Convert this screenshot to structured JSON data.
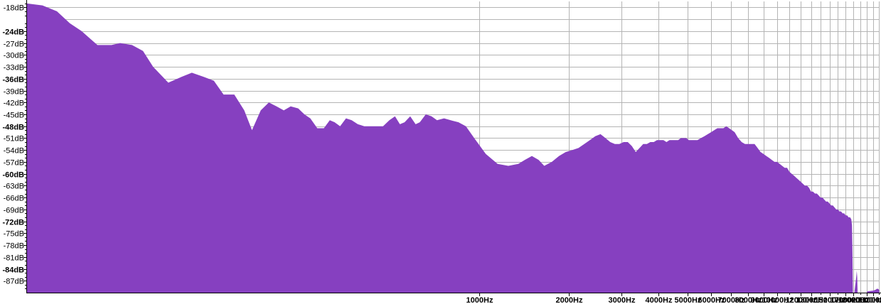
{
  "chart_data": {
    "type": "area",
    "title": "",
    "xlabel": "",
    "ylabel": "",
    "x_scale": "log",
    "xlim": [
      30,
      22100
    ],
    "ylim": [
      -90,
      -16.5
    ],
    "grid": true,
    "legend": "none",
    "colors": {
      "fill": "#8640c0",
      "background": "#ffffff",
      "grid": "#b4b4b4",
      "axis": "#000000"
    },
    "x_ticks": [
      {
        "value": 1000,
        "label": "1000Hz"
      },
      {
        "value": 2000,
        "label": "2000Hz"
      },
      {
        "value": 3000,
        "label": "3000Hz"
      },
      {
        "value": 4000,
        "label": "4000Hz"
      },
      {
        "value": 5000,
        "label": "5000Hz"
      },
      {
        "value": 6000,
        "label": "6000Hz"
      },
      {
        "value": 7000,
        "label": "7000Hz"
      },
      {
        "value": 8000,
        "label": "8000Hz"
      },
      {
        "value": 9000,
        "label": "9000Hz"
      },
      {
        "value": 10000,
        "label": "10000Hz"
      },
      {
        "value": 12000,
        "label": "12000Hz"
      },
      {
        "value": 13000,
        "label": "13000Hz"
      },
      {
        "value": 15000,
        "label": "15000Hz"
      },
      {
        "value": 17000,
        "label": "17000Hz"
      },
      {
        "value": 18000,
        "label": "18000Hz"
      },
      {
        "value": 20000,
        "label": "20000Hz"
      },
      {
        "value": 21000,
        "label": "21000Hz"
      }
    ],
    "x_minor_grid": [
      11000,
      14000,
      16000,
      19000,
      22000
    ],
    "y_ticks": [
      {
        "value": -18,
        "label": "-18dB",
        "bold": false
      },
      {
        "value": -24,
        "label": "-24dB",
        "bold": true
      },
      {
        "value": -27,
        "label": "-27dB",
        "bold": false
      },
      {
        "value": -30,
        "label": "-30dB",
        "bold": false
      },
      {
        "value": -33,
        "label": "-33dB",
        "bold": false
      },
      {
        "value": -36,
        "label": "-36dB",
        "bold": true
      },
      {
        "value": -39,
        "label": "-39dB",
        "bold": false
      },
      {
        "value": -42,
        "label": "-42dB",
        "bold": false
      },
      {
        "value": -45,
        "label": "-45dB",
        "bold": false
      },
      {
        "value": -48,
        "label": "-48dB",
        "bold": true
      },
      {
        "value": -51,
        "label": "-51dB",
        "bold": false
      },
      {
        "value": -54,
        "label": "-54dB",
        "bold": false
      },
      {
        "value": -57,
        "label": "-57dB",
        "bold": false
      },
      {
        "value": -60,
        "label": "-60dB",
        "bold": true
      },
      {
        "value": -63,
        "label": "-63dB",
        "bold": false
      },
      {
        "value": -66,
        "label": "-66dB",
        "bold": false
      },
      {
        "value": -69,
        "label": "-69dB",
        "bold": false
      },
      {
        "value": -72,
        "label": "-72dB",
        "bold": true
      },
      {
        "value": -75,
        "label": "-75dB",
        "bold": false
      },
      {
        "value": -78,
        "label": "-78dB",
        "bold": false
      },
      {
        "value": -81,
        "label": "-81dB",
        "bold": false
      },
      {
        "value": -84,
        "label": "-84dB",
        "bold": true
      },
      {
        "value": -87,
        "label": "-87dB",
        "bold": false
      }
    ],
    "series": [
      {
        "points": [
          [
            30,
            -17.0
          ],
          [
            34,
            -17.5
          ],
          [
            38,
            -19.0
          ],
          [
            42,
            -22.0
          ],
          [
            46,
            -24.0
          ],
          [
            52,
            -27.5
          ],
          [
            58,
            -27.5
          ],
          [
            62,
            -27.0
          ],
          [
            68,
            -27.5
          ],
          [
            74,
            -29.0
          ],
          [
            80,
            -33.0
          ],
          [
            90,
            -37.0
          ],
          [
            100,
            -35.5
          ],
          [
            108,
            -34.5
          ],
          [
            118,
            -35.5
          ],
          [
            128,
            -36.5
          ],
          [
            138,
            -40.0
          ],
          [
            150,
            -40.0
          ],
          [
            162,
            -44.0
          ],
          [
            172,
            -49.0
          ],
          [
            184,
            -44.0
          ],
          [
            196,
            -42.0
          ],
          [
            208,
            -43.0
          ],
          [
            220,
            -44.0
          ],
          [
            232,
            -43.0
          ],
          [
            246,
            -43.5
          ],
          [
            258,
            -45.0
          ],
          [
            270,
            -46.0
          ],
          [
            285,
            -48.5
          ],
          [
            300,
            -48.5
          ],
          [
            314,
            -46.5
          ],
          [
            326,
            -47.0
          ],
          [
            340,
            -48.0
          ],
          [
            356,
            -46.0
          ],
          [
            372,
            -46.5
          ],
          [
            390,
            -47.5
          ],
          [
            410,
            -48.0
          ],
          [
            430,
            -48.0
          ],
          [
            452,
            -48.0
          ],
          [
            474,
            -48.0
          ],
          [
            498,
            -46.5
          ],
          [
            520,
            -45.5
          ],
          [
            540,
            -47.5
          ],
          [
            560,
            -47.0
          ],
          [
            585,
            -45.5
          ],
          [
            610,
            -47.5
          ],
          [
            630,
            -47.0
          ],
          [
            660,
            -45.0
          ],
          [
            690,
            -45.5
          ],
          [
            720,
            -46.5
          ],
          [
            760,
            -46.0
          ],
          [
            800,
            -46.5
          ],
          [
            850,
            -47.0
          ],
          [
            900,
            -48.0
          ],
          [
            960,
            -51.0
          ],
          [
            1050,
            -55.0
          ],
          [
            1150,
            -57.5
          ],
          [
            1250,
            -58.0
          ],
          [
            1350,
            -57.5
          ],
          [
            1420,
            -56.5
          ],
          [
            1500,
            -55.5
          ],
          [
            1580,
            -56.5
          ],
          [
            1650,
            -58.0
          ],
          [
            1750,
            -57.0
          ],
          [
            1850,
            -55.5
          ],
          [
            1950,
            -54.5
          ],
          [
            2050,
            -54.0
          ],
          [
            2150,
            -53.5
          ],
          [
            2250,
            -52.5
          ],
          [
            2350,
            -51.5
          ],
          [
            2450,
            -50.5
          ],
          [
            2550,
            -50.0
          ],
          [
            2650,
            -51.0
          ],
          [
            2750,
            -52.0
          ],
          [
            2850,
            -52.5
          ],
          [
            2950,
            -52.5
          ],
          [
            3050,
            -52.0
          ],
          [
            3150,
            -52.0
          ],
          [
            3250,
            -53.0
          ],
          [
            3350,
            -54.5
          ],
          [
            3450,
            -53.5
          ],
          [
            3550,
            -52.5
          ],
          [
            3650,
            -52.5
          ],
          [
            3750,
            -52.0
          ],
          [
            3850,
            -52.0
          ],
          [
            3950,
            -51.5
          ],
          [
            4050,
            -51.5
          ],
          [
            4150,
            -51.5
          ],
          [
            4250,
            -52.0
          ],
          [
            4350,
            -51.5
          ],
          [
            4450,
            -51.5
          ],
          [
            4550,
            -51.5
          ],
          [
            4650,
            -51.5
          ],
          [
            4750,
            -51.0
          ],
          [
            4850,
            -51.0
          ],
          [
            4950,
            -51.0
          ],
          [
            5050,
            -51.5
          ],
          [
            5150,
            -51.5
          ],
          [
            5250,
            -51.5
          ],
          [
            5400,
            -51.5
          ],
          [
            5550,
            -51.0
          ],
          [
            5700,
            -50.5
          ],
          [
            5850,
            -50.0
          ],
          [
            6000,
            -49.5
          ],
          [
            6150,
            -49.0
          ],
          [
            6300,
            -48.5
          ],
          [
            6450,
            -48.5
          ],
          [
            6600,
            -48.5
          ],
          [
            6750,
            -48.0
          ],
          [
            6900,
            -48.5
          ],
          [
            7050,
            -49.0
          ],
          [
            7200,
            -49.5
          ],
          [
            7400,
            -51.0
          ],
          [
            7600,
            -52.0
          ],
          [
            7800,
            -52.5
          ],
          [
            8000,
            -52.5
          ],
          [
            8200,
            -52.5
          ],
          [
            8400,
            -52.5
          ],
          [
            8600,
            -53.5
          ],
          [
            8800,
            -54.5
          ],
          [
            9000,
            -55.0
          ],
          [
            9200,
            -55.5
          ],
          [
            9400,
            -56.0
          ],
          [
            9600,
            -56.5
          ],
          [
            9800,
            -57.0
          ],
          [
            10000,
            -57.0
          ],
          [
            10200,
            -57.5
          ],
          [
            10400,
            -58.0
          ],
          [
            10600,
            -58.5
          ],
          [
            10800,
            -58.5
          ],
          [
            11000,
            -59.5
          ],
          [
            11200,
            -60.0
          ],
          [
            11400,
            -60.5
          ],
          [
            11600,
            -61.0
          ],
          [
            11800,
            -61.5
          ],
          [
            12000,
            -62.0
          ],
          [
            12200,
            -62.5
          ],
          [
            12400,
            -63.0
          ],
          [
            12600,
            -63.0
          ],
          [
            12800,
            -63.5
          ],
          [
            13000,
            -64.5
          ],
          [
            13200,
            -64.5
          ],
          [
            13400,
            -65.0
          ],
          [
            13600,
            -65.0
          ],
          [
            13800,
            -65.5
          ],
          [
            14000,
            -66.0
          ],
          [
            14200,
            -66.0
          ],
          [
            14400,
            -66.5
          ],
          [
            14600,
            -67.0
          ],
          [
            14800,
            -67.0
          ],
          [
            15000,
            -67.5
          ],
          [
            15200,
            -68.0
          ],
          [
            15400,
            -68.0
          ],
          [
            15600,
            -68.5
          ],
          [
            15800,
            -69.0
          ],
          [
            16000,
            -69.0
          ],
          [
            16200,
            -69.5
          ],
          [
            16400,
            -69.5
          ],
          [
            16600,
            -70.0
          ],
          [
            16800,
            -70.0
          ],
          [
            17000,
            -70.5
          ],
          [
            17200,
            -70.5
          ],
          [
            17400,
            -71.0
          ],
          [
            17600,
            -71.0
          ],
          [
            17750,
            -71.5
          ],
          [
            17850,
            -73.0
          ],
          [
            17920,
            -80.0
          ],
          [
            17980,
            -90.0
          ],
          [
            18180,
            -90.0
          ],
          [
            18250,
            -89.0
          ],
          [
            18350,
            -87.5
          ],
          [
            18450,
            -86.0
          ],
          [
            18520,
            -84.5
          ],
          [
            18580,
            -86.0
          ],
          [
            18650,
            -90.0
          ],
          [
            20000,
            -90.0
          ],
          [
            20100,
            -89.7
          ],
          [
            20500,
            -89.6
          ],
          [
            21000,
            -89.5
          ],
          [
            21400,
            -89.3
          ],
          [
            21700,
            -89.0
          ],
          [
            21900,
            -89.1
          ],
          [
            22050,
            -89.4
          ]
        ]
      }
    ]
  }
}
